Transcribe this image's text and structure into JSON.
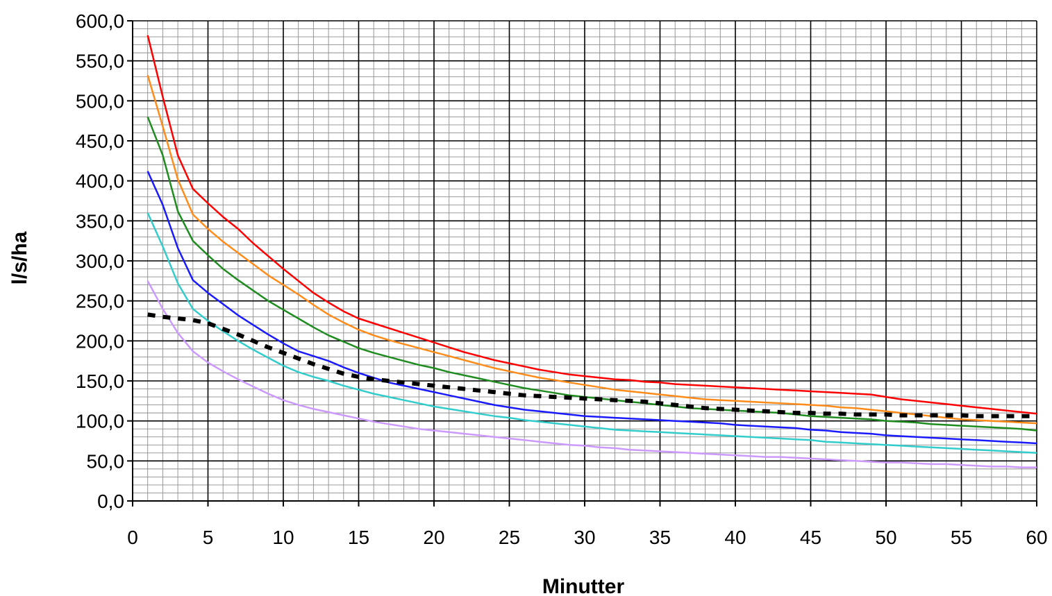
{
  "chart_data": {
    "type": "line",
    "title": "",
    "xlabel": "Minutter",
    "ylabel": "l/s/ha",
    "xlim": [
      0,
      60
    ],
    "ylim": [
      0,
      600
    ],
    "x_ticks": [
      0,
      5,
      10,
      15,
      20,
      25,
      30,
      35,
      40,
      45,
      50,
      55,
      60
    ],
    "x_tick_labels": [
      "0",
      "5",
      "10",
      "15",
      "20",
      "25",
      "30",
      "35",
      "40",
      "45",
      "50",
      "55",
      "60"
    ],
    "y_ticks": [
      0,
      50,
      100,
      150,
      200,
      250,
      300,
      350,
      400,
      450,
      500,
      550,
      600
    ],
    "y_tick_labels": [
      "0,0",
      "50,0",
      "100,0",
      "150,0",
      "200,0",
      "250,0",
      "300,0",
      "350,0",
      "400,0",
      "450,0",
      "500,0",
      "550,0",
      "600,0"
    ],
    "grid": {
      "major_x": 5,
      "major_y": 50,
      "minor_x": 1,
      "minor_y": 10
    },
    "legend": "none",
    "x": [
      1,
      2,
      3,
      4,
      5,
      6,
      7,
      8,
      9,
      10,
      11,
      12,
      13,
      14,
      15,
      16,
      17,
      18,
      19,
      20,
      21,
      22,
      23,
      24,
      25,
      26,
      27,
      28,
      29,
      30,
      31,
      32,
      33,
      34,
      35,
      36,
      37,
      38,
      39,
      40,
      41,
      42,
      43,
      44,
      45,
      46,
      47,
      48,
      49,
      50,
      51,
      52,
      53,
      54,
      55,
      56,
      57,
      58,
      59,
      60
    ],
    "series": [
      {
        "color": "#ff0000",
        "dashed": false,
        "values": [
          582,
          505,
          432,
          390,
          372,
          355,
          340,
          322,
          306,
          290,
          275,
          260,
          248,
          237,
          228,
          222,
          216,
          210,
          204,
          198,
          192,
          186,
          181,
          176,
          172,
          168,
          164,
          161,
          158,
          156,
          154,
          152,
          151,
          149,
          148,
          146,
          145,
          144,
          143,
          142,
          141,
          140,
          139,
          138,
          137,
          136,
          135,
          134,
          133,
          130,
          127,
          125,
          123,
          121,
          119,
          117,
          115,
          113,
          111,
          109
        ]
      },
      {
        "color": "#ff8c1a",
        "dashed": false,
        "values": [
          532,
          468,
          402,
          358,
          340,
          324,
          310,
          296,
          282,
          270,
          258,
          245,
          233,
          223,
          214,
          207,
          201,
          196,
          191,
          186,
          181,
          176,
          171,
          166,
          162,
          158,
          154,
          151,
          148,
          145,
          142,
          139,
          137,
          135,
          133,
          131,
          129,
          127,
          126,
          125,
          124,
          123,
          122,
          121,
          120,
          119,
          117,
          116,
          114,
          112,
          110,
          108,
          106,
          104,
          102,
          101,
          100,
          99,
          98,
          97
        ]
      },
      {
        "color": "#1f8c1f",
        "dashed": false,
        "values": [
          480,
          432,
          362,
          325,
          307,
          290,
          276,
          263,
          250,
          239,
          228,
          217,
          207,
          199,
          191,
          185,
          180,
          175,
          170,
          166,
          161,
          157,
          153,
          149,
          145,
          141,
          138,
          135,
          132,
          130,
          128,
          126,
          124,
          122,
          120,
          118,
          116,
          115,
          114,
          113,
          112,
          111,
          110,
          108,
          106,
          105,
          104,
          103,
          102,
          100,
          99,
          98,
          96,
          95,
          94,
          93,
          92,
          91,
          90,
          88
        ]
      },
      {
        "color": "#1a1aff",
        "dashed": false,
        "values": [
          412,
          370,
          316,
          276,
          260,
          246,
          232,
          220,
          208,
          197,
          187,
          181,
          175,
          167,
          160,
          154,
          148,
          144,
          140,
          136,
          132,
          128,
          124,
          120,
          117,
          114,
          112,
          110,
          108,
          106,
          105,
          104,
          103,
          102,
          101,
          100,
          99,
          98,
          97,
          95,
          94,
          93,
          92,
          91,
          89,
          88,
          86,
          85,
          84,
          82,
          81,
          80,
          79,
          78,
          77,
          76,
          75,
          74,
          73,
          72
        ]
      },
      {
        "color": "#33cccc",
        "dashed": false,
        "values": [
          360,
          318,
          272,
          240,
          225,
          212,
          200,
          189,
          179,
          169,
          161,
          155,
          150,
          144,
          139,
          134,
          130,
          126,
          122,
          118,
          115,
          112,
          109,
          106,
          104,
          101,
          99,
          97,
          95,
          93,
          91,
          89,
          88,
          87,
          86,
          85,
          84,
          83,
          82,
          81,
          80,
          79,
          78,
          77,
          76,
          74,
          73,
          72,
          71,
          70,
          69,
          68,
          67,
          66,
          65,
          64,
          63,
          62,
          61,
          60
        ]
      },
      {
        "color": "#cc99ff",
        "dashed": false,
        "values": [
          275,
          240,
          210,
          187,
          173,
          162,
          152,
          143,
          134,
          126,
          120,
          115,
          111,
          107,
          103,
          99,
          96,
          93,
          90,
          88,
          86,
          84,
          82,
          80,
          78,
          76,
          74,
          72,
          70,
          69,
          67,
          66,
          64,
          63,
          62,
          61,
          60,
          59,
          58,
          57,
          56,
          55,
          55,
          54,
          53,
          52,
          51,
          50,
          49,
          48,
          48,
          47,
          46,
          46,
          45,
          44,
          43,
          43,
          42,
          42
        ]
      },
      {
        "color": "#000000",
        "dashed": true,
        "values": [
          233,
          230,
          228,
          226,
          222,
          215,
          208,
          200,
          192,
          185,
          178,
          171,
          165,
          159,
          155,
          152,
          150,
          148,
          146,
          144,
          142,
          140,
          138,
          136,
          134,
          132,
          131,
          130,
          129,
          128,
          127,
          126,
          125,
          124,
          122,
          120,
          118,
          116,
          115,
          114,
          113,
          112,
          111,
          110,
          110,
          109,
          109,
          108,
          108,
          108,
          107,
          107,
          107,
          107,
          107,
          106,
          106,
          106,
          106,
          106
        ]
      }
    ]
  }
}
